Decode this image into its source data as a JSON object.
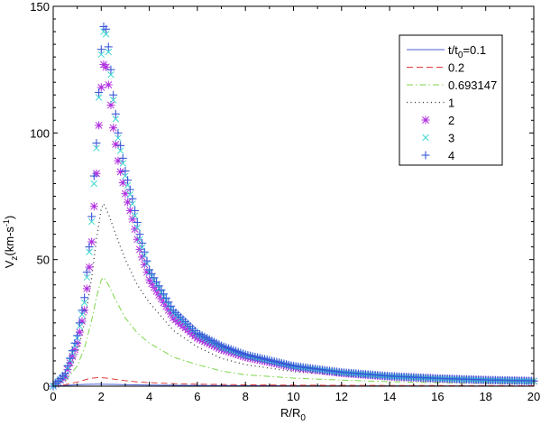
{
  "chart_data": {
    "type": "line",
    "title": "",
    "xlabel": "R/R",
    "xlabel_sub": "0",
    "ylabel": "V",
    "ylabel_sub": "z",
    "ylabel_units": "(km-s",
    "ylabel_units_sup": "-1",
    "ylabel_units_close": ")",
    "xlim": [
      0,
      20
    ],
    "ylim": [
      0,
      150
    ],
    "xticks": [
      0,
      2,
      4,
      6,
      8,
      10,
      12,
      14,
      16,
      18,
      20
    ],
    "yticks": [
      0,
      50,
      100,
      150
    ],
    "grid": false,
    "legend_position": "upper right",
    "legend_title_prefix": "t/t",
    "legend_title_sub": "0",
    "series": [
      {
        "name": "0.1",
        "legend_label": "=0.1",
        "style": "solid",
        "color": "#4a5fd6",
        "x": [
          0,
          0.5,
          1,
          1.5,
          1.9,
          2.5,
          3,
          4,
          6,
          8,
          10,
          14,
          20
        ],
        "y": [
          0,
          0.3,
          0.6,
          0.75,
          0.8,
          0.7,
          0.6,
          0.45,
          0.3,
          0.22,
          0.17,
          0.12,
          0.08
        ]
      },
      {
        "name": "0.2",
        "legend_label": "0.2",
        "style": "dashed",
        "color": "#e04040",
        "x": [
          0,
          0.5,
          1,
          1.5,
          1.9,
          2.3,
          2.8,
          3.5,
          4,
          5,
          6,
          8,
          10,
          14,
          20
        ],
        "y": [
          0,
          0.6,
          1.6,
          3.0,
          3.5,
          3.1,
          2.4,
          1.7,
          1.4,
          1.0,
          0.8,
          0.55,
          0.42,
          0.28,
          0.18
        ]
      },
      {
        "name": "0.693147",
        "legend_label": "0.693147",
        "style": "dashdot",
        "color": "#7dd64a",
        "x": [
          0,
          0.5,
          1,
          1.3,
          1.6,
          1.8,
          2.0,
          2.1,
          2.3,
          2.6,
          3,
          3.5,
          4,
          5,
          6,
          7,
          8,
          10,
          12,
          14,
          16,
          18,
          20
        ],
        "y": [
          0,
          2,
          8,
          15,
          26,
          35,
          42,
          43,
          40,
          34,
          27,
          21,
          17,
          11.5,
          8.5,
          6,
          4.5,
          3.2,
          2.4,
          1.8,
          1.4,
          1.1,
          0.9
        ]
      },
      {
        "name": "1",
        "legend_label": "1",
        "style": "dotted",
        "color": "#333333",
        "x": [
          0,
          0.5,
          1,
          1.3,
          1.6,
          1.8,
          2.0,
          2.1,
          2.3,
          2.6,
          3,
          3.5,
          4,
          5,
          6,
          7,
          8,
          10,
          12,
          14,
          16,
          18,
          20
        ],
        "y": [
          0,
          3,
          13,
          25,
          43,
          58,
          70,
          72,
          68,
          60,
          50,
          40,
          33,
          22,
          15.5,
          11,
          8.5,
          5.8,
          4.2,
          3.2,
          2.5,
          2.0,
          1.7
        ]
      },
      {
        "name": "2",
        "legend_label": "2",
        "style": "marker-asterisk",
        "color": "#b030e0",
        "x": [
          0,
          0.5,
          1,
          1.3,
          1.5,
          1.6,
          1.7,
          1.8,
          1.9,
          2.0,
          2.1,
          2.2,
          2.3,
          2.4,
          2.5,
          2.7,
          3,
          3.3,
          3.6,
          4,
          5,
          6,
          7,
          8,
          10,
          12,
          14,
          16,
          18,
          20
        ],
        "y": [
          0,
          4,
          17,
          30,
          47,
          57,
          71,
          84,
          103,
          118,
          127,
          126,
          119,
          111,
          102,
          89,
          76,
          66,
          54,
          42,
          27,
          19,
          14.5,
          11.5,
          7.5,
          5.2,
          3.8,
          3.0,
          2.4,
          2.0
        ]
      },
      {
        "name": "3",
        "legend_label": "3",
        "style": "marker-x",
        "color": "#40d8d0",
        "x": [
          0,
          0.5,
          1,
          1.3,
          1.5,
          1.6,
          1.7,
          1.8,
          1.9,
          2.0,
          2.1,
          2.2,
          2.3,
          2.4,
          2.5,
          2.7,
          3,
          3.3,
          3.6,
          4,
          5,
          6,
          7,
          8,
          10,
          12,
          14,
          16,
          18,
          20
        ],
        "y": [
          0,
          4.5,
          19,
          33,
          53,
          65,
          80,
          94,
          114,
          131,
          140,
          139,
          132,
          123,
          113,
          98,
          83,
          72,
          58,
          45,
          29,
          20.5,
          15.5,
          12.2,
          7.8,
          5.4,
          3.9,
          3.0,
          2.4,
          2.0
        ]
      },
      {
        "name": "4",
        "legend_label": "4",
        "style": "marker-plus",
        "color": "#3a58d8",
        "x": [
          0,
          0.5,
          1,
          1.3,
          1.5,
          1.6,
          1.7,
          1.8,
          1.9,
          2.0,
          2.1,
          2.2,
          2.3,
          2.4,
          2.5,
          2.7,
          3,
          3.3,
          3.6,
          4,
          5,
          6,
          7,
          8,
          10,
          12,
          14,
          16,
          18,
          20
        ],
        "y": [
          0,
          5,
          20,
          35,
          55,
          67,
          83,
          96,
          116,
          133,
          142,
          141,
          134,
          125,
          115,
          100,
          85,
          74,
          60,
          46,
          30,
          21,
          16,
          12.5,
          8,
          5.5,
          4.0,
          3.1,
          2.5,
          2.1
        ]
      }
    ]
  }
}
